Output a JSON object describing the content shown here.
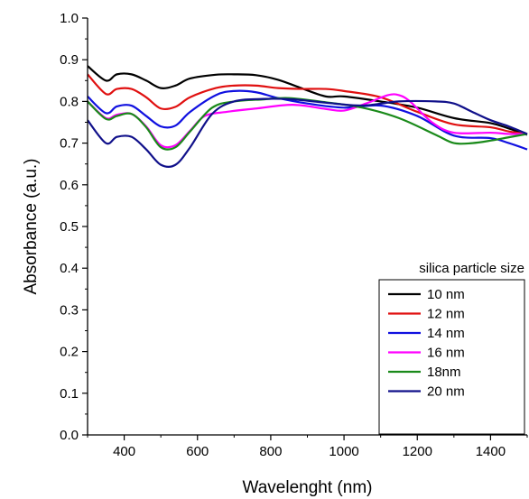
{
  "chart_data": {
    "type": "line",
    "title": "",
    "xlabel": "Wavelenght (nm)",
    "ylabel": "Absorbance (a.u.)",
    "xlim": [
      300,
      1500
    ],
    "ylim": [
      0.0,
      1.0
    ],
    "xticks": [
      400,
      600,
      800,
      1000,
      1200,
      1400
    ],
    "yticks": [
      0.0,
      0.1,
      0.2,
      0.3,
      0.4,
      0.5,
      0.6,
      0.7,
      0.8,
      0.9,
      1.0
    ],
    "xtick_labels": [
      "400",
      "600",
      "800",
      "1000",
      "1200",
      "1400"
    ],
    "ytick_labels": [
      "0.0",
      "0.1",
      "0.2",
      "0.3",
      "0.4",
      "0.5",
      "0.6",
      "0.7",
      "0.8",
      "0.9",
      "1.0"
    ],
    "grid": false,
    "legend": {
      "title": "silica particle size",
      "position": "bottom-right"
    },
    "series": [
      {
        "name": "10 nm",
        "color": "#000000",
        "x": [
          300,
          350,
          380,
          420,
          460,
          500,
          540,
          580,
          650,
          700,
          760,
          820,
          880,
          950,
          1000,
          1100,
          1200,
          1300,
          1400,
          1450,
          1500
        ],
        "y": [
          0.885,
          0.85,
          0.865,
          0.865,
          0.85,
          0.832,
          0.838,
          0.855,
          0.864,
          0.865,
          0.863,
          0.852,
          0.833,
          0.812,
          0.812,
          0.8,
          0.785,
          0.76,
          0.748,
          0.735,
          0.72
        ]
      },
      {
        "name": "12 nm",
        "color": "#e01010",
        "x": [
          300,
          350,
          380,
          420,
          460,
          500,
          540,
          580,
          650,
          700,
          760,
          820,
          880,
          950,
          1000,
          1100,
          1200,
          1300,
          1400,
          1450,
          1500
        ],
        "y": [
          0.865,
          0.818,
          0.83,
          0.83,
          0.81,
          0.783,
          0.787,
          0.81,
          0.832,
          0.838,
          0.838,
          0.832,
          0.83,
          0.83,
          0.825,
          0.81,
          0.775,
          0.745,
          0.738,
          0.728,
          0.722
        ]
      },
      {
        "name": "14 nm",
        "color": "#1010e0",
        "x": [
          300,
          350,
          380,
          420,
          460,
          500,
          540,
          580,
          650,
          700,
          760,
          820,
          900,
          1000,
          1100,
          1200,
          1300,
          1400,
          1450,
          1500
        ],
        "y": [
          0.812,
          0.772,
          0.788,
          0.79,
          0.765,
          0.74,
          0.742,
          0.775,
          0.815,
          0.825,
          0.822,
          0.808,
          0.795,
          0.785,
          0.79,
          0.765,
          0.718,
          0.712,
          0.7,
          0.685
        ]
      },
      {
        "name": "16 nm",
        "color": "#ff00ff",
        "x": [
          300,
          350,
          380,
          420,
          460,
          500,
          540,
          580,
          620,
          680,
          760,
          860,
          950,
          1000,
          1060,
          1120,
          1150,
          1180,
          1240,
          1300,
          1400,
          1450,
          1500
        ],
        "y": [
          0.8,
          0.76,
          0.768,
          0.77,
          0.74,
          0.695,
          0.695,
          0.73,
          0.765,
          0.775,
          0.783,
          0.792,
          0.782,
          0.778,
          0.795,
          0.815,
          0.815,
          0.8,
          0.75,
          0.725,
          0.725,
          0.722,
          0.722
        ]
      },
      {
        "name": "18nm",
        "color": "#1a8a1a",
        "x": [
          300,
          350,
          380,
          420,
          460,
          500,
          540,
          580,
          640,
          700,
          780,
          850,
          950,
          1050,
          1150,
          1250,
          1300,
          1350,
          1400,
          1450,
          1500
        ],
        "y": [
          0.8,
          0.758,
          0.765,
          0.77,
          0.738,
          0.69,
          0.69,
          0.728,
          0.785,
          0.8,
          0.805,
          0.808,
          0.798,
          0.785,
          0.76,
          0.72,
          0.7,
          0.7,
          0.706,
          0.714,
          0.722
        ]
      },
      {
        "name": "20 nm",
        "color": "#10108a",
        "x": [
          300,
          350,
          380,
          420,
          460,
          500,
          540,
          580,
          640,
          700,
          780,
          860,
          950,
          1050,
          1150,
          1250,
          1300,
          1350,
          1400,
          1450,
          1500
        ],
        "y": [
          0.755,
          0.7,
          0.715,
          0.715,
          0.685,
          0.648,
          0.648,
          0.69,
          0.77,
          0.8,
          0.806,
          0.805,
          0.797,
          0.79,
          0.8,
          0.8,
          0.795,
          0.775,
          0.755,
          0.74,
          0.722
        ]
      }
    ]
  }
}
